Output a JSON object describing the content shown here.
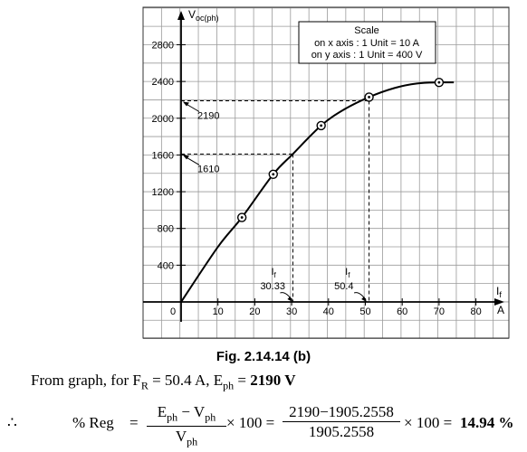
{
  "chart_data": {
    "type": "line",
    "title": "",
    "y_axis_label": "V",
    "y_axis_label_sub": "oc(ph)",
    "x_axis_label": "I",
    "x_axis_label_sub": "f",
    "x_unit": "A",
    "x_ticks": [
      0,
      10,
      20,
      30,
      40,
      50,
      60,
      70,
      80
    ],
    "y_ticks": [
      400,
      800,
      1200,
      1600,
      2000,
      2400,
      2800
    ],
    "xlim": [
      0,
      90
    ],
    "ylim": [
      0,
      3000
    ],
    "grid": true,
    "series": [
      {
        "marker": "circle-dot",
        "points": [
          [
            16.5,
            920
          ],
          [
            25,
            1390
          ],
          [
            38,
            1920
          ],
          [
            51,
            2230
          ],
          [
            70,
            2390
          ]
        ]
      }
    ],
    "curve": [
      [
        0,
        0
      ],
      [
        10,
        600
      ],
      [
        16.5,
        920
      ],
      [
        25,
        1390
      ],
      [
        30.3,
        1610
      ],
      [
        38,
        1920
      ],
      [
        44,
        2090
      ],
      [
        51,
        2230
      ],
      [
        58,
        2330
      ],
      [
        64,
        2378
      ],
      [
        70,
        2390
      ],
      [
        74,
        2390
      ]
    ],
    "scale_box": {
      "title": "Scale",
      "line_x": "on x axis : 1 Unit = 10 A",
      "line_y": "on y axis : 1 Unit = 400 V"
    },
    "annotations": [
      {
        "text": "2190",
        "y": 2190,
        "x_end": 51
      },
      {
        "text": "1610",
        "y": 1610,
        "x_end": 30.33
      },
      {
        "text": "I",
        "sub": "f",
        "value": "30.33",
        "x": 30.33
      },
      {
        "text": "I",
        "sub": "f",
        "value": "50.4",
        "x": 50.4
      }
    ]
  },
  "caption": "Fig. 2.14.14 (b)",
  "text": {
    "from_graph": "From graph, for F",
    "sub_r": "R",
    "eq1": " =  50.4 A, E",
    "sub_ph": "ph",
    "eq2": " = ",
    "value_bold": "2190 V",
    "therefore": "∴",
    "reg_label": "% Reg",
    "equals": "=",
    "frac1_num_a": "E",
    "frac1_num_sub_a": "ph",
    "frac1_num_mid": " − V",
    "frac1_num_sub_b": "ph",
    "frac1_den": "V",
    "frac1_den_sub": "ph",
    "times100": "× 100 =",
    "frac2_num": "2190−1905.2558",
    "frac2_den": "1905.2558",
    "times100_eq": "× 100 =",
    "result": "14.94 %"
  }
}
